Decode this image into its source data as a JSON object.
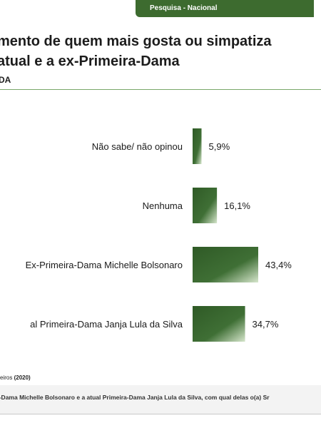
{
  "header": {
    "tab_label": "Pesquisa - Nacional",
    "tab_color": "#3d6b2f"
  },
  "title": {
    "line1": "mento de quem mais gosta ou simpatiza",
    "line2": "atual e a ex-Primeira-Dama",
    "subtitle": "DA"
  },
  "chart_data": {
    "type": "bar",
    "orientation": "horizontal",
    "categories": [
      "Não sabe/ não opinou",
      "Nenhuma",
      "Ex-Primeira-Dama Michelle Bolsonaro",
      "al Primeira-Dama Janja Lula da Silva"
    ],
    "values": [
      5.9,
      16.1,
      43.4,
      34.7
    ],
    "labels": [
      "5,9%",
      "16,1%",
      "43,4%",
      "34,7%"
    ],
    "unit": "%",
    "bar_color": "#3a6630",
    "bar_highlight": "#c9dcbd",
    "axis_visible": false,
    "grid": false,
    "legend": "none"
  },
  "footer": {
    "source_prefix": "eiros",
    "source_year": "(2020)",
    "question": "a-Dama Michelle Bolsonaro e a atual Primeira-Dama Janja Lula da Silva, com qual delas o(a) Sr"
  }
}
